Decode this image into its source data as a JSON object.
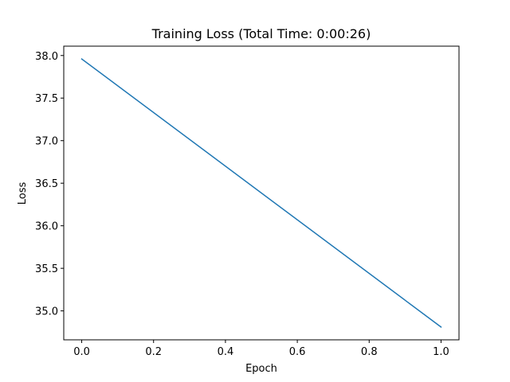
{
  "chart_data": {
    "type": "line",
    "title": "Training Loss (Total Time: 0:00:26)",
    "xlabel": "Epoch",
    "ylabel": "Loss",
    "xlim": [
      -0.05,
      1.05
    ],
    "ylim": [
      34.66,
      38.11
    ],
    "xticks": [
      0.0,
      0.2,
      0.4,
      0.6,
      0.8,
      1.0
    ],
    "xtick_labels": [
      "0.0",
      "0.2",
      "0.4",
      "0.6",
      "0.8",
      "1.0"
    ],
    "yticks": [
      35.0,
      35.5,
      36.0,
      36.5,
      37.0,
      37.5,
      38.0
    ],
    "ytick_labels": [
      "35.0",
      "35.5",
      "36.0",
      "36.5",
      "37.0",
      "37.5",
      "38.0"
    ],
    "grid": false,
    "legend": "none",
    "series": [
      {
        "color": "#1f77b4",
        "x": [
          0,
          1
        ],
        "y": [
          37.96,
          34.81
        ]
      }
    ]
  }
}
